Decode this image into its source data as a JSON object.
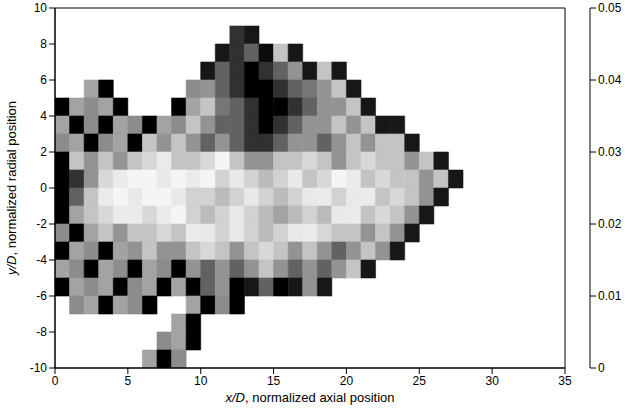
{
  "chart_data": {
    "type": "heatmap",
    "xlabel": "x/D, normalized axial position",
    "ylabel": "y/D, normalized radial position",
    "xlim": [
      0,
      35
    ],
    "xticks": [
      0,
      5,
      10,
      15,
      20,
      25,
      30,
      35
    ],
    "ylim": [
      -10,
      10
    ],
    "yticks": [
      -10,
      -8,
      -6,
      -4,
      -2,
      0,
      2,
      4,
      6,
      8,
      10
    ],
    "colorbar_lim": [
      0,
      0.05
    ],
    "colorbar_ticks": [
      0,
      0.01,
      0.02,
      0.03,
      0.04,
      0.05
    ],
    "x": [
      0.5,
      1.5,
      2.5,
      3.5,
      4.5,
      5.5,
      6.5,
      7.5,
      8.5,
      9.5,
      10.5,
      11.5,
      12.5,
      13.5,
      14.5,
      15.5,
      16.5,
      17.5,
      18.5,
      19.5,
      20.5,
      21.5,
      22.5,
      23.5,
      24.5,
      25.5,
      26.5,
      27.5
    ],
    "y": [
      9.5,
      8.5,
      7.5,
      6.5,
      5.5,
      4.5,
      3.5,
      2.5,
      1.5,
      0.5,
      -0.5,
      -1.5,
      -2.5,
      -3.5,
      -4.5,
      -5.5,
      -6.5,
      -7.5,
      -8.5,
      -9.5
    ],
    "values": [
      [
        null,
        null,
        null,
        null,
        null,
        null,
        null,
        null,
        null,
        null,
        null,
        null,
        null,
        null,
        null,
        null,
        null,
        null,
        null,
        null,
        null,
        null,
        null,
        null,
        null,
        null,
        null,
        null
      ],
      [
        null,
        null,
        null,
        null,
        null,
        null,
        null,
        null,
        null,
        null,
        null,
        null,
        0.045,
        0.006,
        null,
        null,
        null,
        null,
        null,
        null,
        null,
        null,
        null,
        null,
        null,
        null,
        null,
        null
      ],
      [
        null,
        null,
        null,
        null,
        null,
        null,
        null,
        null,
        null,
        null,
        null,
        0.006,
        0.045,
        0.04,
        0.005,
        0.03,
        0.006,
        null,
        null,
        null,
        null,
        null,
        null,
        null,
        null,
        null,
        null,
        null
      ],
      [
        null,
        null,
        null,
        null,
        null,
        null,
        null,
        null,
        null,
        null,
        0.006,
        0.04,
        0.045,
        0.05,
        0.045,
        0.04,
        0.035,
        0.006,
        0.03,
        0.006,
        null,
        null,
        null,
        null,
        null,
        null,
        null,
        null
      ],
      [
        null,
        null,
        0.018,
        0.004,
        null,
        null,
        null,
        null,
        null,
        0.016,
        0.035,
        0.04,
        0.045,
        0.05,
        0.05,
        0.045,
        0.04,
        0.038,
        0.035,
        0.03,
        0.006,
        null,
        null,
        null,
        null,
        null,
        null,
        null
      ],
      [
        0.004,
        0.018,
        0.016,
        0.018,
        0.004,
        null,
        null,
        null,
        0.004,
        0.018,
        0.03,
        0.038,
        0.04,
        0.045,
        0.05,
        0.05,
        0.045,
        0.04,
        0.035,
        0.035,
        0.03,
        0.006,
        null,
        null,
        null,
        null,
        null,
        null
      ],
      [
        0.018,
        0.004,
        0.016,
        0.004,
        0.018,
        0.016,
        0.004,
        0.018,
        0.016,
        0.03,
        0.035,
        0.04,
        0.04,
        0.045,
        0.05,
        0.045,
        0.04,
        0.035,
        0.035,
        0.03,
        0.035,
        0.03,
        0.006,
        0.006,
        null,
        null,
        null,
        null
      ],
      [
        0.016,
        0.018,
        0.004,
        0.016,
        0.018,
        0.004,
        0.03,
        0.035,
        0.03,
        0.035,
        0.04,
        0.035,
        0.04,
        0.045,
        0.045,
        0.04,
        0.035,
        0.035,
        0.04,
        0.035,
        0.03,
        0.035,
        0.03,
        0.03,
        0.006,
        null,
        null,
        null
      ],
      [
        0.004,
        0.03,
        0.035,
        0.03,
        0.035,
        0.03,
        0.028,
        0.026,
        0.03,
        0.03,
        0.028,
        0.025,
        0.03,
        0.035,
        0.035,
        0.03,
        0.03,
        0.028,
        0.03,
        0.035,
        0.03,
        0.028,
        0.03,
        0.03,
        0.035,
        0.03,
        0.006,
        null
      ],
      [
        0.05,
        0.045,
        0.035,
        0.028,
        0.026,
        0.025,
        0.025,
        0.024,
        0.025,
        0.026,
        0.025,
        0.022,
        0.024,
        0.022,
        0.02,
        0.022,
        0.024,
        0.03,
        0.028,
        0.025,
        0.026,
        0.03,
        0.028,
        0.03,
        0.03,
        0.035,
        0.03,
        0.006
      ],
      [
        0.05,
        0.04,
        0.03,
        0.026,
        0.025,
        0.024,
        0.025,
        0.025,
        0.024,
        0.022,
        0.022,
        0.02,
        0.022,
        0.024,
        0.022,
        0.02,
        0.022,
        0.024,
        0.026,
        0.022,
        0.024,
        0.026,
        0.03,
        0.028,
        0.03,
        0.035,
        0.006,
        null
      ],
      [
        0.004,
        0.018,
        0.03,
        0.028,
        0.026,
        0.026,
        0.028,
        0.026,
        0.025,
        0.022,
        0.02,
        0.022,
        0.024,
        0.022,
        0.02,
        0.018,
        0.02,
        0.022,
        0.02,
        0.024,
        0.026,
        0.03,
        0.028,
        0.03,
        0.035,
        0.006,
        null,
        null
      ],
      [
        0.016,
        0.004,
        0.018,
        0.03,
        0.035,
        0.03,
        0.03,
        0.028,
        0.03,
        0.026,
        0.024,
        0.022,
        0.024,
        0.022,
        0.02,
        0.022,
        0.024,
        0.026,
        0.028,
        0.03,
        0.03,
        0.035,
        0.03,
        0.035,
        0.006,
        null,
        null,
        null
      ],
      [
        0.004,
        0.018,
        0.016,
        0.004,
        0.018,
        0.035,
        0.03,
        0.035,
        0.035,
        0.03,
        0.028,
        0.03,
        0.035,
        0.03,
        0.028,
        0.03,
        0.035,
        0.03,
        0.035,
        0.04,
        0.035,
        0.03,
        0.035,
        0.006,
        null,
        null,
        null,
        null
      ],
      [
        0.018,
        0.016,
        0.004,
        0.018,
        0.016,
        0.004,
        0.018,
        0.016,
        0.004,
        0.035,
        0.04,
        0.035,
        0.04,
        0.035,
        0.03,
        0.035,
        0.04,
        0.035,
        0.04,
        0.035,
        0.03,
        0.006,
        null,
        null,
        null,
        null,
        null,
        null
      ],
      [
        0.004,
        0.018,
        0.016,
        0.018,
        0.004,
        0.016,
        0.018,
        0.004,
        0.018,
        0.004,
        0.04,
        0.035,
        0.004,
        0.006,
        0.04,
        0.004,
        0.006,
        0.035,
        0.006,
        null,
        null,
        null,
        null,
        null,
        null,
        null,
        null,
        null
      ],
      [
        null,
        0.016,
        0.018,
        0.004,
        0.018,
        0.016,
        0.004,
        null,
        null,
        0.018,
        0.004,
        0.016,
        0.004,
        null,
        null,
        null,
        null,
        null,
        null,
        null,
        null,
        null,
        null,
        null,
        null,
        null,
        null,
        null
      ],
      [
        null,
        null,
        null,
        null,
        null,
        null,
        null,
        null,
        0.018,
        0.004,
        null,
        null,
        null,
        null,
        null,
        null,
        null,
        null,
        null,
        null,
        null,
        null,
        null,
        null,
        null,
        null,
        null,
        null
      ],
      [
        null,
        null,
        null,
        null,
        null,
        null,
        null,
        0.016,
        0.018,
        0.004,
        null,
        null,
        null,
        null,
        null,
        null,
        null,
        null,
        null,
        null,
        null,
        null,
        null,
        null,
        null,
        null,
        null,
        null
      ],
      [
        null,
        null,
        null,
        null,
        null,
        null,
        0.018,
        0.004,
        0.016,
        null,
        null,
        null,
        null,
        null,
        null,
        null,
        null,
        null,
        null,
        null,
        null,
        null,
        null,
        null,
        null,
        null,
        null,
        null
      ]
    ]
  }
}
